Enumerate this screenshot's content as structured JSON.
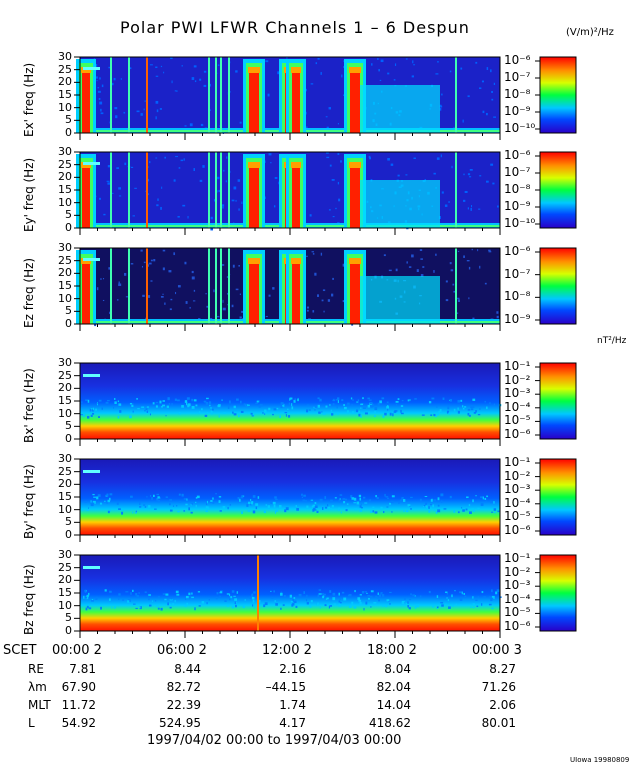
{
  "chart_data": {
    "type": "heatmap",
    "title": "Polar PWI LFWR Channels 1 – 6 Despun",
    "colorbar_units_e": "(V/m)²/Hz",
    "colorbar_units_b": "nT²/Hz",
    "ylim": [
      0,
      30
    ],
    "yticks": [
      "0",
      "5",
      "10",
      "15",
      "20",
      "25",
      "30"
    ],
    "x_ticks": [
      "00:00  2",
      "06:00  2",
      "12:00  2",
      "18:00  2",
      "00:00  3"
    ],
    "time_range": "1997/04/02 00:00 to 1997/04/03 00:00",
    "credit": "UIowa 19980809",
    "panels": [
      {
        "ylabel": "Ex' freq (Hz)",
        "kind": "E",
        "cbar_ticks": [
          "10⁻⁶",
          "10⁻⁷",
          "10⁻⁸",
          "10⁻⁹",
          "10⁻¹⁰"
        ]
      },
      {
        "ylabel": "Ey' freq (Hz)",
        "kind": "E",
        "cbar_ticks": [
          "10⁻⁶",
          "10⁻⁷",
          "10⁻⁸",
          "10⁻⁹",
          "10⁻¹⁰"
        ]
      },
      {
        "ylabel": "Ez freq (Hz)",
        "kind": "Ez",
        "cbar_ticks": [
          "10⁻⁶",
          "10⁻⁷",
          "10⁻⁸",
          "10⁻⁹"
        ]
      },
      {
        "ylabel": "Bx' freq (Hz)",
        "kind": "B",
        "cbar_ticks": [
          "10⁻¹",
          "10⁻²",
          "10⁻³",
          "10⁻⁴",
          "10⁻⁵",
          "10⁻⁶"
        ]
      },
      {
        "ylabel": "By' freq (Hz)",
        "kind": "B",
        "cbar_ticks": [
          "10⁻¹",
          "10⁻²",
          "10⁻³",
          "10⁻⁴",
          "10⁻⁵",
          "10⁻⁶"
        ]
      },
      {
        "ylabel": "Bz freq (Hz)",
        "kind": "B",
        "cbar_ticks": [
          "10⁻¹",
          "10⁻²",
          "10⁻³",
          "10⁻⁴",
          "10⁻⁵",
          "10⁻⁶"
        ]
      }
    ],
    "ephemeris": [
      {
        "label": "R_E",
        "values": [
          "7.81",
          "8.44",
          "2.16",
          "8.04",
          "8.27"
        ]
      },
      {
        "label": "λ_m",
        "values": [
          "67.90",
          "82.72",
          "–44.15",
          "82.04",
          "71.26"
        ]
      },
      {
        "label": "MLT",
        "values": [
          "11.72",
          "22.39",
          "1.74",
          "14.04",
          "2.06"
        ]
      },
      {
        "label": "L",
        "values": [
          "54.92",
          "524.95",
          "4.17",
          "418.62",
          "80.01"
        ]
      }
    ],
    "x_axis_label": "SCET"
  }
}
